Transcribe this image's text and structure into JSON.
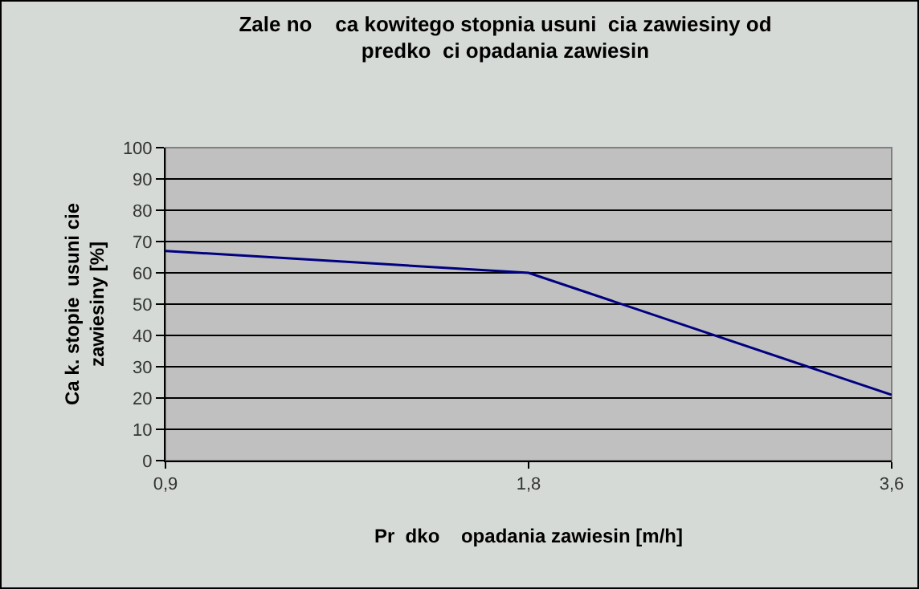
{
  "chart_data": {
    "type": "line",
    "title": "Zale no    ca kowitego stopnia usuni  cia zawiesiny od\npredko  ci opadania zawiesin",
    "xlabel": "Pr  dko    opadania zawiesin [m/h]",
    "ylabel": "Ca k. stopie  usuni cie\nzawiesiny [%]",
    "categories": [
      "0,9",
      "1,8",
      "3,6"
    ],
    "series": [
      {
        "color": "#000080",
        "values": [
          67,
          60,
          21
        ]
      }
    ],
    "ylim": [
      0,
      100
    ],
    "yticks": [
      0,
      10,
      20,
      30,
      40,
      50,
      60,
      70,
      80,
      90,
      100
    ],
    "grid": "y",
    "marker": "none",
    "line_style": "solid"
  }
}
